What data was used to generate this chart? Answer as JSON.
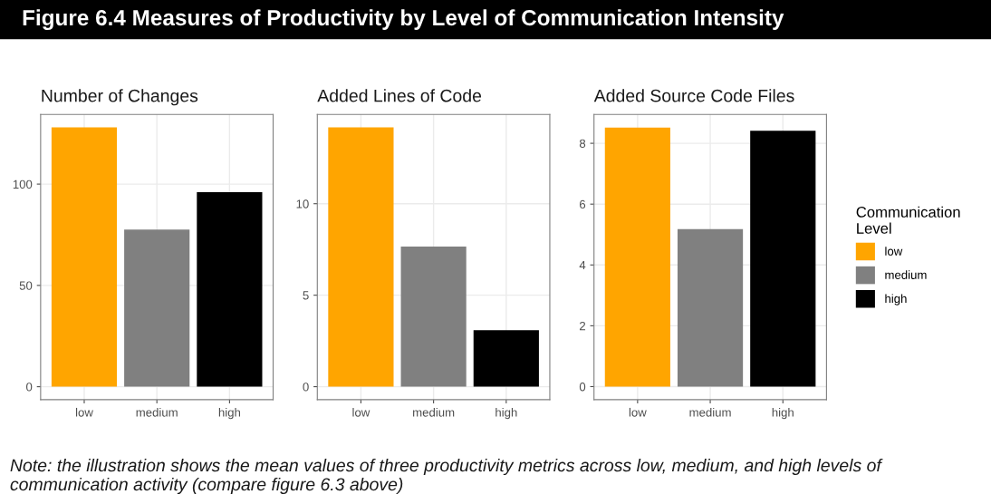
{
  "chart_data": [
    {
      "type": "bar",
      "title": "Number of Changes",
      "categories": [
        "low",
        "medium",
        "high"
      ],
      "values": [
        128,
        77.6,
        96
      ],
      "colors": [
        "#ffa500",
        "#808080",
        "#000000"
      ],
      "ylim": [
        -6.4,
        134.4
      ],
      "yticks": [
        0,
        50,
        100
      ],
      "grid": true
    },
    {
      "type": "bar",
      "title": "Added Lines of Code",
      "categories": [
        "low",
        "medium",
        "high"
      ],
      "values": [
        14.17,
        7.66,
        3.09
      ],
      "colors": [
        "#ffa500",
        "#808080",
        "#000000"
      ],
      "ylim": [
        -0.71,
        14.88
      ],
      "yticks": [
        0,
        5,
        10
      ],
      "grid": true
    },
    {
      "type": "bar",
      "title": "Added Source Code Files",
      "categories": [
        "low",
        "medium",
        "high"
      ],
      "series": [
        {
          "name": "low",
          "color": "#ffa500",
          "values": [
            8.52,
            null,
            null
          ]
        },
        {
          "name": "medium",
          "color": "#808080",
          "values": [
            null,
            5.18,
            null
          ]
        },
        {
          "name": "high",
          "color": "#000000",
          "values": [
            null,
            null,
            8.41
          ]
        }
      ],
      "ylim": [
        -0.43,
        8.95
      ],
      "yticks": [
        0,
        2,
        4,
        6,
        8
      ],
      "grid": true,
      "legend": "right",
      "legend_title": "Communication\nLevel"
    },
    {
      "type": "other",
      "annotations": [
        "Figure 6.4 Measures of Productivity by Level of Communication Intensity",
        "Note: the illustration shows the mean values of three productivity metrics across low, medium, and high levels of communication activity (compare figure 6.3 above)"
      ]
    }
  ]
}
